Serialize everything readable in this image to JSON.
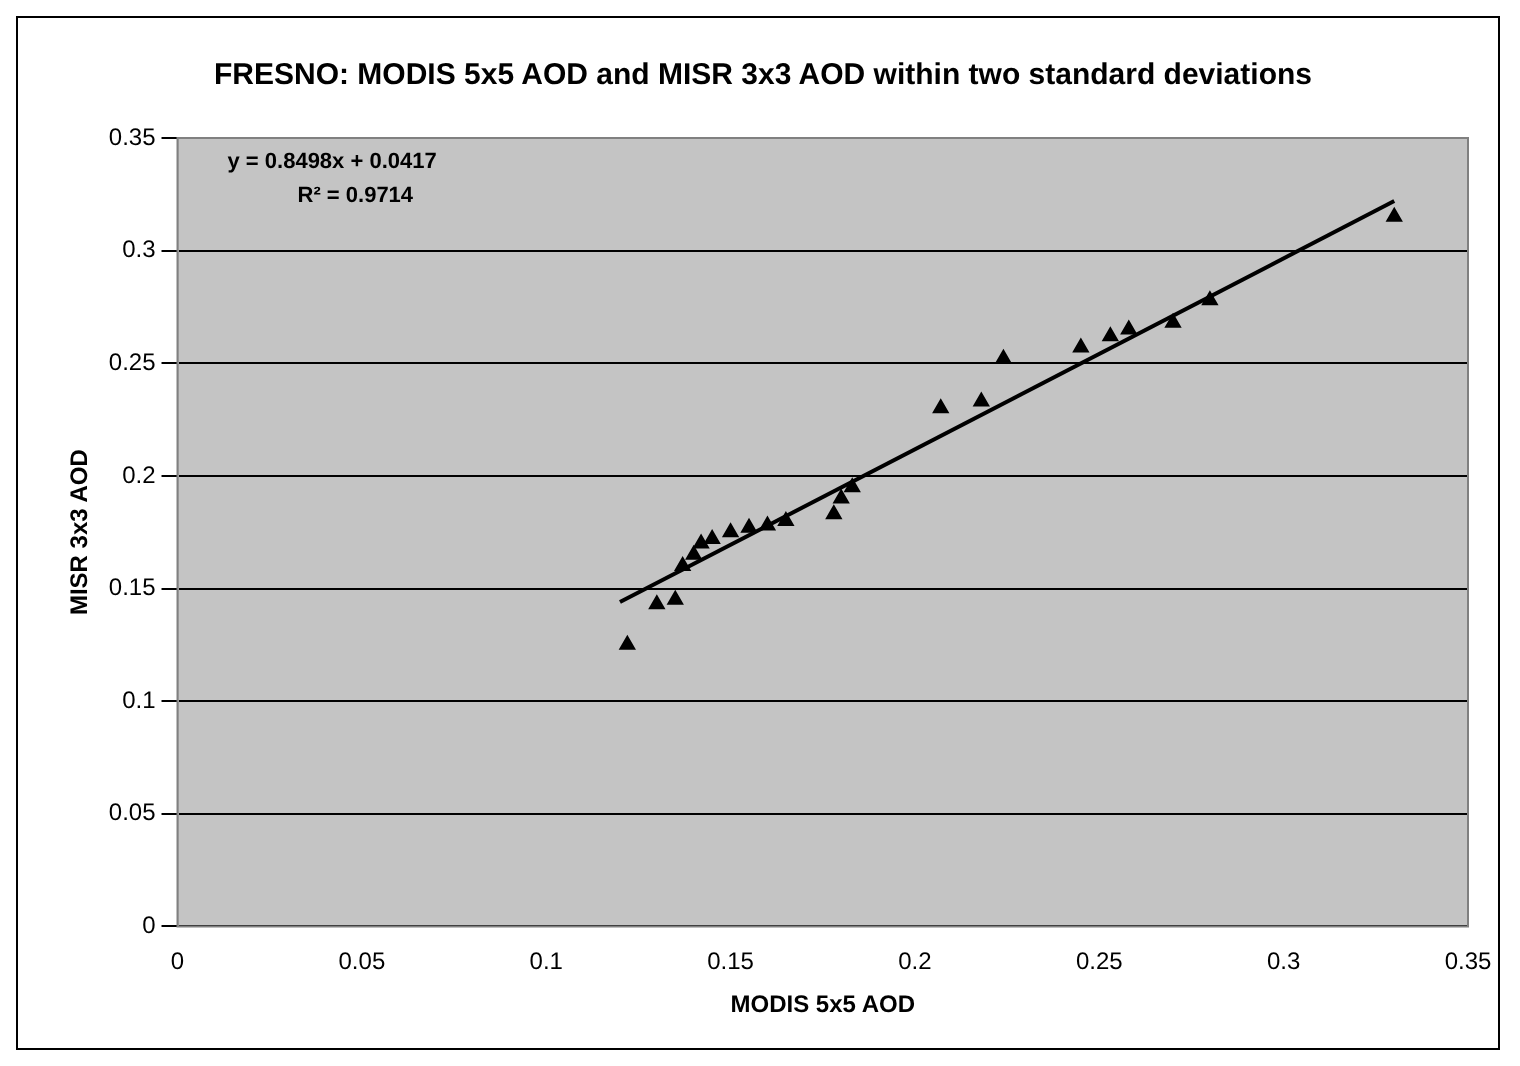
{
  "chart_data": {
    "type": "scatter",
    "title": "FRESNO: MODIS 5x5 AOD and MISR 3x3 AOD within two standard deviations",
    "xlabel": "MODIS 5x5 AOD",
    "ylabel": "MISR 3x3 AOD",
    "xlim": [
      0,
      0.35
    ],
    "xticks": [
      0,
      0.05,
      0.1,
      0.15,
      0.2,
      0.25,
      0.3,
      0.35
    ],
    "ylim": [
      0,
      0.35
    ],
    "yticks": [
      0,
      0.05,
      0.1,
      0.15,
      0.2,
      0.25,
      0.3,
      0.35
    ],
    "grid": "y",
    "marker": "triangle",
    "legend": false,
    "series": [
      {
        "color": "#000000",
        "x": [
          0.122,
          0.13,
          0.135,
          0.137,
          0.14,
          0.142,
          0.145,
          0.15,
          0.155,
          0.16,
          0.165,
          0.178,
          0.18,
          0.183,
          0.207,
          0.218,
          0.224,
          0.245,
          0.253,
          0.258,
          0.27,
          0.28,
          0.33
        ],
        "values": [
          0.125,
          0.143,
          0.145,
          0.16,
          0.165,
          0.17,
          0.172,
          0.175,
          0.177,
          0.178,
          0.18,
          0.183,
          0.19,
          0.195,
          0.23,
          0.233,
          0.252,
          0.257,
          0.262,
          0.265,
          0.268,
          0.278,
          0.315
        ]
      },
      {
        "type": "line",
        "color": "#000000",
        "marker": "none",
        "x": [
          0.12,
          0.33
        ],
        "values": [
          0.144,
          0.322
        ]
      }
    ],
    "annotations": [
      "y = 0.8498x + 0.0417",
      "R² = 0.9714"
    ]
  }
}
